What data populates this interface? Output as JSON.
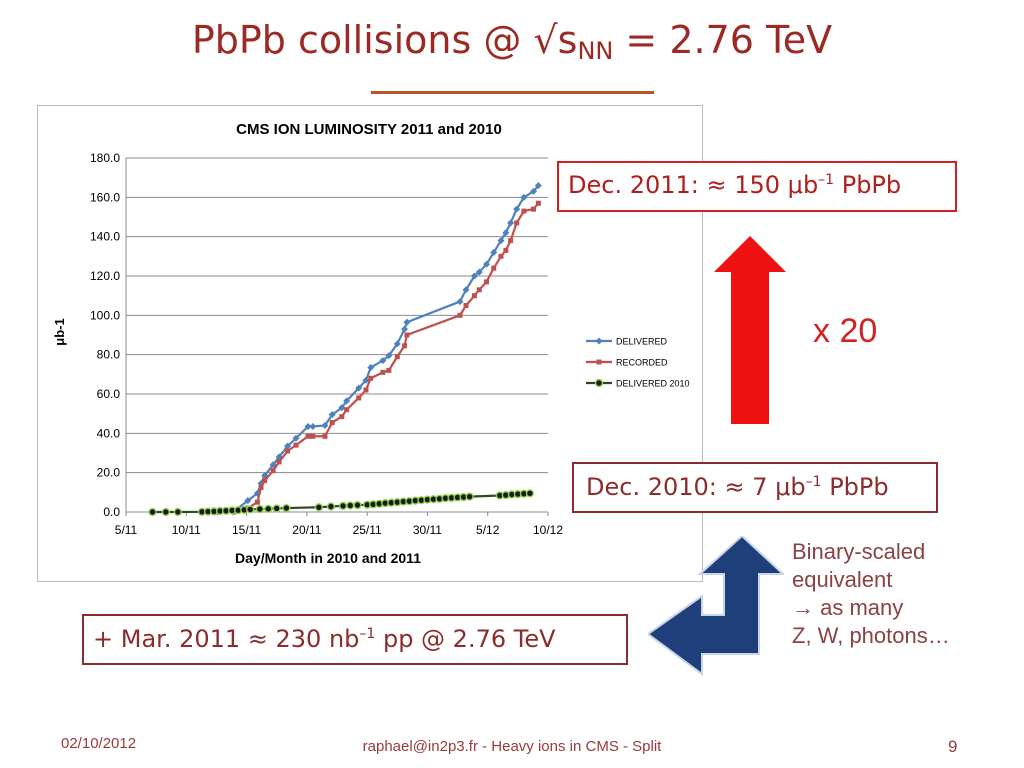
{
  "slide": {
    "title_main": "PbPb collisions @ √s",
    "title_sub": "NN",
    "title_tail": " = 2.76 TeV",
    "box_2011": {
      "pre": "Dec. 2011: ≈ 150 μb",
      "sup": "–1",
      "post": " PbPb"
    },
    "box_2010": {
      "pre": "Dec. 2010: ≈ 7 μb",
      "sup": "–1",
      "post": " PbPb"
    },
    "box_pp": {
      "pre": "+ Mar. 2011 ≈ 230 nb",
      "sup": "–1",
      "post": " pp @ 2.76 TeV"
    },
    "factor": "x 20",
    "note_lines": [
      "Binary-scaled",
      "equivalent",
      "→ as many",
      "Z, W, photons…"
    ],
    "footer_date": "02/10/2012",
    "footer_text": "raphael@in2p3.fr - Heavy ions in CMS - Split",
    "page_number": "9",
    "colors": {
      "title": "#9b2a24",
      "red_arrow": "#ee1111",
      "blue_arrow": "#1f3f7a",
      "box_border": "#d32020"
    }
  },
  "chart_data": {
    "type": "line",
    "title": "CMS ION LUMINOSITY 2011 and 2010",
    "xlabel": "Day/Month in 2010 and 2011",
    "ylabel": "μb-1",
    "x_unit": "day offset from 5/11",
    "xlim": [
      0,
      35
    ],
    "ylim": [
      0,
      180
    ],
    "yticks": [
      "0.0",
      "20.0",
      "40.0",
      "60.0",
      "80.0",
      "100.0",
      "120.0",
      "140.0",
      "160.0",
      "180.0"
    ],
    "xticks": [
      "5/11",
      "10/11",
      "15/11",
      "20/11",
      "25/11",
      "30/11",
      "5/12",
      "10/12"
    ],
    "legend_position": "right",
    "grid": true,
    "series": [
      {
        "name": "DELIVERED",
        "color": "#4f81bd",
        "marker": "diamond",
        "x": [
          7.6,
          8.9,
          10.1,
          10.9,
          11.2,
          11.5,
          12.2,
          12.7,
          13.4,
          14.1,
          15.1,
          15.5,
          16.5,
          17.1,
          17.9,
          18.3,
          19.3,
          19.9,
          20.3,
          21.3,
          21.8,
          22.5,
          23.1,
          23.3,
          27.7,
          28.2,
          28.9,
          29.3,
          29.9,
          30.5,
          31.1,
          31.5,
          31.9,
          32.4,
          33.0,
          33.8,
          34.2
        ],
        "y": [
          0,
          0,
          5.8,
          9.5,
          14.5,
          18.5,
          24,
          28,
          33.5,
          37.5,
          43.5,
          43.5,
          44,
          49.5,
          53,
          56.5,
          63,
          67,
          73.5,
          77,
          79.5,
          85.5,
          93,
          96.5,
          107,
          113,
          120,
          122,
          126,
          132,
          138,
          142,
          147,
          154,
          160,
          163,
          166
        ]
      },
      {
        "name": "RECORDED",
        "color": "#c0504d",
        "marker": "square",
        "x": [
          7.6,
          8.9,
          10.1,
          10.9,
          11.2,
          11.5,
          12.2,
          12.7,
          13.4,
          14.1,
          15.1,
          15.5,
          16.5,
          17.1,
          17.9,
          18.3,
          19.3,
          19.9,
          20.3,
          21.3,
          21.8,
          22.5,
          23.1,
          23.3,
          27.7,
          28.2,
          28.9,
          29.3,
          29.9,
          30.5,
          31.1,
          31.5,
          31.9,
          32.4,
          33.0,
          33.8,
          34.2
        ],
        "y": [
          0,
          0,
          2,
          5,
          12.5,
          16,
          21,
          25.5,
          31,
          34,
          38.5,
          38.5,
          38.5,
          45.5,
          48.5,
          52,
          58,
          62,
          68,
          71,
          72,
          79,
          84.5,
          90,
          100,
          105,
          110,
          113,
          117,
          124,
          130,
          133,
          138,
          147,
          153,
          154,
          157
        ]
      },
      {
        "name": "DELIVERED 2010",
        "color": "#2e4a1e",
        "marker": "circle",
        "x": [
          2.2,
          3.3,
          4.3,
          6.3,
          6.8,
          7.3,
          7.8,
          8.3,
          8.8,
          9.3,
          9.8,
          10.3,
          11.1,
          11.8,
          12.5,
          13.3,
          16.0,
          17.0,
          18.0,
          18.6,
          19.2,
          20.0,
          20.5,
          21.0,
          21.5,
          22.0,
          22.5,
          23.0,
          23.5,
          24.0,
          24.5,
          25.0,
          25.5,
          26.0,
          26.5,
          27.0,
          27.5,
          28.0,
          28.5,
          31.0,
          31.5,
          32.0,
          32.5,
          33.0,
          33.5
        ],
        "y": [
          0,
          0,
          0,
          0.1,
          0.2,
          0.3,
          0.5,
          0.6,
          0.8,
          0.9,
          1.1,
          1.3,
          1.5,
          1.6,
          1.8,
          2.0,
          2.4,
          2.8,
          3.1,
          3.3,
          3.5,
          3.7,
          3.9,
          4.2,
          4.5,
          4.7,
          5.0,
          5.3,
          5.5,
          5.8,
          6.0,
          6.3,
          6.5,
          6.7,
          7.0,
          7.2,
          7.4,
          7.6,
          7.8,
          8.4,
          8.6,
          8.9,
          9.1,
          9.3,
          9.5
        ]
      }
    ]
  }
}
